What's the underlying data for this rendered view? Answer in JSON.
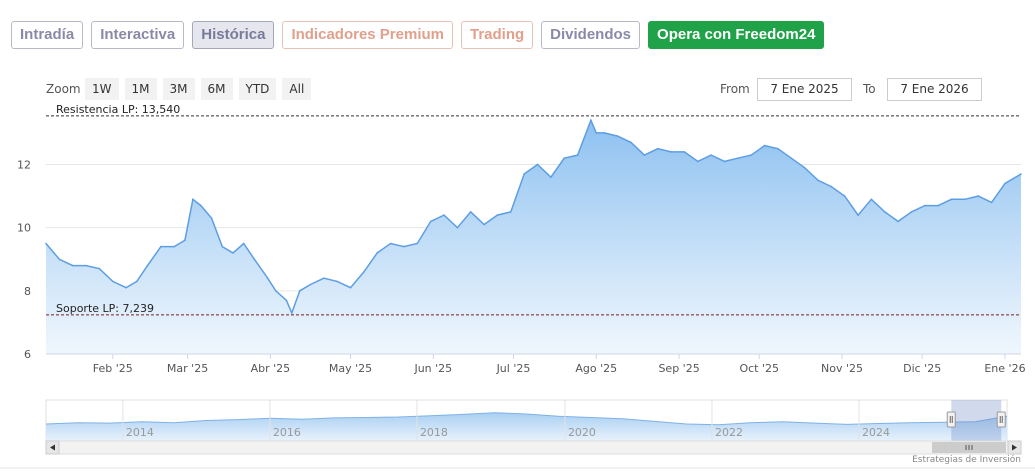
{
  "tabs": [
    {
      "label": "Intradía",
      "style": "normal"
    },
    {
      "label": "Interactiva",
      "style": "normal"
    },
    {
      "label": "Histórica",
      "style": "active"
    },
    {
      "label": "Indicadores Premium",
      "style": "orange"
    },
    {
      "label": "Trading",
      "style": "orange"
    },
    {
      "label": "Dividendos",
      "style": "normal"
    },
    {
      "label": "Opera con Freedom24",
      "style": "green"
    }
  ],
  "zoom": {
    "label": "Zoom",
    "buttons": [
      "1W",
      "1M",
      "3M",
      "6M",
      "YTD",
      "All"
    ]
  },
  "range": {
    "from_label": "From",
    "from_value": "7 Ene 2025",
    "to_label": "To",
    "to_value": "7 Ene 2026"
  },
  "footer": "Estrategias de Inversión",
  "colors": {
    "area_line": "#5d9ee3",
    "area_fill_top": "#8cc0f0",
    "area_fill_bottom": "#eef6fd",
    "level_line": "#7a1f1f",
    "tab_green": "#20a249"
  },
  "chart_data": {
    "type": "area",
    "ylim": [
      6,
      13.6
    ],
    "yticks": [
      6,
      8,
      10,
      12
    ],
    "xticks": [
      "Feb '25",
      "Mar '25",
      "Abr '25",
      "May '25",
      "Jun '25",
      "Jul '25",
      "Ago '25",
      "Sep '25",
      "Oct '25",
      "Nov '25",
      "Dic '25",
      "Ene '26"
    ],
    "levels": [
      {
        "label": "Resistencia LP: 13,540",
        "value": 13.54
      },
      {
        "label": "Soporte LP: 7,239",
        "value": 7.239
      }
    ],
    "x": [
      "2025-01-07",
      "2025-01-12",
      "2025-01-17",
      "2025-01-22",
      "2025-01-27",
      "2025-02-01",
      "2025-02-06",
      "2025-02-10",
      "2025-02-14",
      "2025-02-19",
      "2025-02-24",
      "2025-02-28",
      "2025-03-03",
      "2025-03-06",
      "2025-03-10",
      "2025-03-14",
      "2025-03-18",
      "2025-03-22",
      "2025-03-26",
      "2025-03-31",
      "2025-04-03",
      "2025-04-07",
      "2025-04-09",
      "2025-04-12",
      "2025-04-16",
      "2025-04-21",
      "2025-04-26",
      "2025-05-01",
      "2025-05-06",
      "2025-05-11",
      "2025-05-16",
      "2025-05-21",
      "2025-05-26",
      "2025-05-31",
      "2025-06-05",
      "2025-06-10",
      "2025-06-15",
      "2025-06-20",
      "2025-06-25",
      "2025-06-30",
      "2025-07-05",
      "2025-07-10",
      "2025-07-15",
      "2025-07-20",
      "2025-07-25",
      "2025-07-30",
      "2025-08-01",
      "2025-08-04",
      "2025-08-09",
      "2025-08-14",
      "2025-08-19",
      "2025-08-24",
      "2025-08-29",
      "2025-09-03",
      "2025-09-08",
      "2025-09-13",
      "2025-09-18",
      "2025-09-23",
      "2025-09-28",
      "2025-10-03",
      "2025-10-08",
      "2025-10-13",
      "2025-10-18",
      "2025-10-23",
      "2025-10-28",
      "2025-11-02",
      "2025-11-07",
      "2025-11-12",
      "2025-11-17",
      "2025-11-22",
      "2025-11-27",
      "2025-12-02",
      "2025-12-07",
      "2025-12-12",
      "2025-12-17",
      "2025-12-22",
      "2025-12-27",
      "2026-01-01",
      "2026-01-07"
    ],
    "values": [
      9.5,
      9.0,
      8.8,
      8.8,
      8.7,
      8.3,
      8.1,
      8.3,
      8.8,
      9.4,
      9.4,
      9.6,
      10.9,
      10.7,
      10.3,
      9.4,
      9.2,
      9.5,
      9.0,
      8.4,
      8.0,
      7.7,
      7.3,
      8.0,
      8.2,
      8.4,
      8.3,
      8.1,
      8.6,
      9.2,
      9.5,
      9.4,
      9.5,
      10.2,
      10.4,
      10.0,
      10.5,
      10.1,
      10.4,
      10.5,
      11.7,
      12.0,
      11.6,
      12.2,
      12.3,
      13.4,
      13.0,
      13.0,
      12.9,
      12.7,
      12.3,
      12.5,
      12.4,
      12.4,
      12.1,
      12.3,
      12.1,
      12.2,
      12.3,
      12.6,
      12.5,
      12.2,
      11.9,
      11.5,
      11.3,
      11.0,
      10.4,
      10.9,
      10.5,
      10.2,
      10.5,
      10.7,
      10.7,
      10.9,
      10.9,
      11.0,
      10.8,
      11.4,
      11.7
    ]
  },
  "navigator": {
    "year_labels": [
      "2014",
      "2016",
      "2018",
      "2020",
      "2022",
      "2024"
    ],
    "values": [
      9.0,
      9.3,
      9.2,
      9.5,
      9.3,
      9.8,
      10.0,
      10.3,
      10.1,
      10.4,
      10.5,
      10.6,
      10.9,
      11.2,
      11.6,
      11.3,
      10.8,
      10.5,
      10.2,
      9.6,
      9.0,
      8.8,
      9.3,
      9.5,
      9.2,
      8.9,
      9.1,
      9.3,
      9.4,
      9.5,
      10.8
    ],
    "selection_start": 0.942,
    "selection_end": 0.994
  }
}
